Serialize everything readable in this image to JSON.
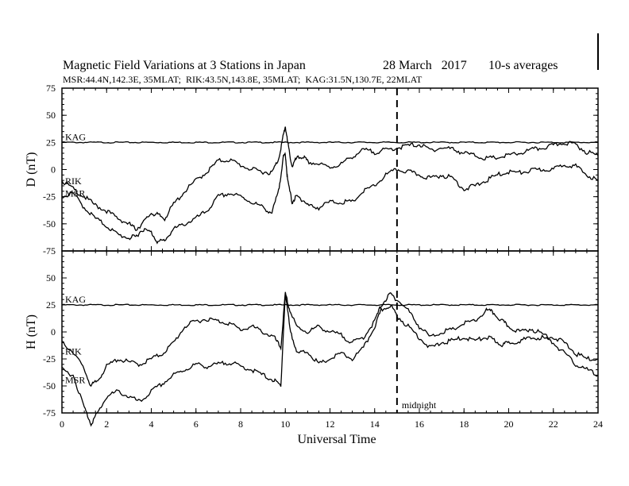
{
  "header": {
    "title": "Magnetic Field Variations at 3 Stations in Japan",
    "date": "28 March   2017",
    "averaging": "10-s averages",
    "stations_line": "MSR:44.4N,142.3E, 35MLAT;  RIK:43.5N,143.8E, 35MLAT;  KAG:31.5N,130.7E, 22MLAT"
  },
  "annotation": {
    "midnight_label": "midnight",
    "midnight_ut": 15
  },
  "chart_data": [
    {
      "type": "line",
      "panel": "D",
      "ylabel": "D (nT)",
      "xlabel": "",
      "xlim": [
        0,
        24
      ],
      "ylim": [
        -75,
        75
      ],
      "yticks": [
        "75",
        "50",
        "25",
        "0",
        "-25",
        "-50",
        "-75"
      ],
      "xticks": [
        "0",
        "2",
        "4",
        "6",
        "8",
        "10",
        "12",
        "14",
        "16",
        "18",
        "20",
        "22",
        "24"
      ],
      "labels": [
        "KAG",
        "RIK",
        "MSR"
      ],
      "series": [
        {
          "name": "KAG",
          "x": [
            0,
            24
          ],
          "values": [
            25,
            25
          ]
        },
        {
          "name": "RIK",
          "x": [
            0,
            0.5,
            1,
            1.5,
            2,
            2.5,
            3,
            3.3,
            3.6,
            4,
            4.3,
            4.6,
            5,
            5.5,
            6,
            6.5,
            7,
            7.5,
            8,
            8.5,
            9,
            9.4,
            9.7,
            9.9,
            10,
            10.1,
            10.3,
            10.5,
            10.8,
            11,
            11.5,
            12,
            12.5,
            13,
            13.5,
            14,
            14.5,
            15,
            15.5,
            16,
            16.5,
            17,
            17.5,
            18,
            18.5,
            19,
            19.5,
            20,
            20.5,
            21,
            21.5,
            22,
            22.5,
            23,
            23.5,
            24
          ],
          "values": [
            -10,
            -18,
            -25,
            -33,
            -38,
            -45,
            -50,
            -55,
            -50,
            -40,
            -42,
            -45,
            -32,
            -20,
            -10,
            -2,
            8,
            9,
            4,
            0,
            -2,
            -3,
            10,
            30,
            40,
            25,
            3,
            10,
            12,
            7,
            5,
            2,
            5,
            12,
            18,
            16,
            18,
            20,
            22,
            23,
            18,
            20,
            19,
            15,
            13,
            10,
            11,
            13,
            15,
            18,
            20,
            22,
            25,
            23,
            16,
            13
          ]
        },
        {
          "name": "MSR",
          "x": [
            0,
            0.5,
            1,
            1.5,
            2,
            2.5,
            3,
            3.3,
            3.6,
            4,
            4.3,
            4.6,
            5,
            5.5,
            6,
            6.5,
            7,
            7.5,
            8,
            8.5,
            9,
            9.4,
            9.7,
            9.9,
            10,
            10.1,
            10.3,
            10.5,
            10.8,
            11,
            11.5,
            12,
            12.5,
            13,
            13.5,
            14,
            14.5,
            15,
            15.5,
            16,
            16.5,
            17,
            17.5,
            18,
            18.5,
            19,
            19.5,
            20,
            20.5,
            21,
            21.5,
            22,
            22.5,
            23,
            23.5,
            24
          ],
          "values": [
            -25,
            -22,
            -35,
            -45,
            -52,
            -60,
            -63,
            -62,
            -55,
            -58,
            -67,
            -65,
            -55,
            -50,
            -45,
            -38,
            -25,
            -22,
            -25,
            -30,
            -35,
            -40,
            -20,
            10,
            15,
            -10,
            -30,
            -25,
            -28,
            -33,
            -35,
            -30,
            -30,
            -30,
            -20,
            -15,
            -5,
            0,
            -2,
            -5,
            -8,
            -5,
            -8,
            -18,
            -15,
            -10,
            -5,
            -2,
            -3,
            -1,
            0,
            0,
            5,
            3,
            -5,
            -10
          ]
        }
      ]
    },
    {
      "type": "line",
      "panel": "H",
      "ylabel": "H (nT)",
      "xlabel": "Universal Time",
      "xlim": [
        0,
        24
      ],
      "ylim": [
        -75,
        75
      ],
      "yticks": [
        "75",
        "50",
        "25",
        "0",
        "-25",
        "-50",
        "-75"
      ],
      "xticks": [
        "0",
        "2",
        "4",
        "6",
        "8",
        "10",
        "12",
        "14",
        "16",
        "18",
        "20",
        "22",
        "24"
      ],
      "labels": [
        "KAG",
        "RIK",
        "MSR"
      ],
      "series": [
        {
          "name": "KAG",
          "x": [
            0,
            24
          ],
          "values": [
            25,
            25
          ]
        },
        {
          "name": "RIK",
          "x": [
            0,
            0.5,
            1,
            1.3,
            1.6,
            2,
            2.5,
            3,
            3.5,
            4,
            4.5,
            5,
            5.5,
            6,
            6.5,
            7,
            7.5,
            8,
            8.5,
            9,
            9.5,
            9.8,
            10,
            10.2,
            10.5,
            11,
            11.5,
            12,
            12.5,
            13,
            13.5,
            14,
            14.3,
            14.7,
            15,
            15.5,
            16,
            16.5,
            17,
            17.5,
            18,
            18.5,
            19,
            19.3,
            19.7,
            20,
            20.5,
            21,
            21.5,
            22,
            22.5,
            23,
            23.5,
            24
          ],
          "values": [
            -10,
            -18,
            -35,
            -50,
            -45,
            -32,
            -25,
            -28,
            -30,
            -25,
            -20,
            -10,
            5,
            10,
            12,
            10,
            8,
            2,
            5,
            0,
            -5,
            -15,
            35,
            20,
            5,
            0,
            5,
            0,
            -3,
            -10,
            -5,
            10,
            25,
            35,
            30,
            20,
            5,
            -5,
            0,
            2,
            8,
            10,
            20,
            18,
            10,
            5,
            0,
            3,
            -2,
            -5,
            -10,
            -20,
            -25,
            -25
          ]
        },
        {
          "name": "MSR",
          "x": [
            0,
            0.5,
            1,
            1.3,
            1.6,
            2,
            2.5,
            3,
            3.5,
            4,
            4.5,
            5,
            5.5,
            6,
            6.5,
            7,
            7.5,
            8,
            8.5,
            9,
            9.5,
            9.8,
            10,
            10.2,
            10.5,
            11,
            11.5,
            12,
            12.5,
            13,
            13.5,
            14,
            14.3,
            14.7,
            15,
            15.5,
            16,
            16.5,
            17,
            17.5,
            18,
            18.5,
            19,
            19.3,
            19.7,
            20,
            20.5,
            21,
            21.5,
            22,
            22.5,
            23,
            23.5,
            24
          ],
          "values": [
            -35,
            -40,
            -70,
            -85,
            -75,
            -60,
            -55,
            -60,
            -65,
            -55,
            -48,
            -40,
            -35,
            -30,
            -32,
            -30,
            -28,
            -32,
            -35,
            -40,
            -45,
            -50,
            35,
            5,
            -20,
            -18,
            -30,
            -25,
            -20,
            -25,
            -15,
            5,
            20,
            25,
            15,
            5,
            -5,
            -15,
            -10,
            -8,
            -5,
            -8,
            -5,
            -7,
            -12,
            -10,
            -8,
            -6,
            -5,
            -10,
            -20,
            -30,
            -35,
            -40
          ]
        }
      ]
    }
  ]
}
